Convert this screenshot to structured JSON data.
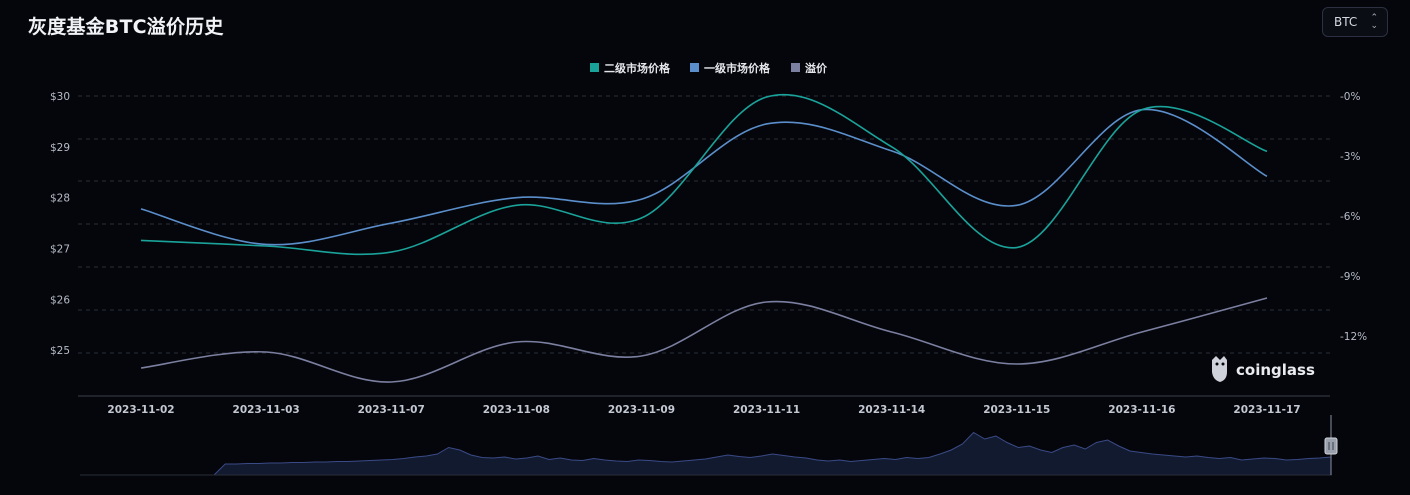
{
  "header": {
    "title": "灰度基金BTC溢价历史",
    "selector_value": "BTC"
  },
  "watermark": {
    "text": "coinglass"
  },
  "chart_data": {
    "type": "line",
    "title": "灰度基金BTC溢价历史",
    "categories": [
      "2023-11-02",
      "2023-11-03",
      "2023-11-07",
      "2023-11-08",
      "2023-11-09",
      "2023-11-11",
      "2023-11-14",
      "2023-11-15",
      "2023-11-16",
      "2023-11-17"
    ],
    "y_left": {
      "ticks": [
        "$25",
        "$26",
        "$27",
        "$28",
        "$29",
        "$30"
      ],
      "range": [
        24.1,
        30.0
      ]
    },
    "y_right": {
      "ticks": [
        "-0%",
        "-3%",
        "-6%",
        "-9%",
        "-12%"
      ],
      "range": [
        -15.0,
        0.0
      ]
    },
    "legend_position": "top-center",
    "grid": true,
    "series": [
      {
        "name": "二级市场价格",
        "axis": "left",
        "color": "#1aa39a",
        "values": [
          27.16,
          27.05,
          26.93,
          27.85,
          27.6,
          29.98,
          29.0,
          27.02,
          29.73,
          28.91
        ]
      },
      {
        "name": "一级市场价格",
        "axis": "left",
        "color": "#5b8fcb",
        "values": [
          27.78,
          27.08,
          27.5,
          28.0,
          27.97,
          29.45,
          28.92,
          27.85,
          29.73,
          28.42
        ]
      },
      {
        "name": "溢价",
        "axis": "right",
        "color": "#7b7fa0",
        "values": [
          -13.6,
          -12.8,
          -14.3,
          -12.3,
          -13.0,
          -10.3,
          -11.8,
          -13.4,
          -11.8,
          -10.1
        ]
      }
    ],
    "navigator": {
      "values": [
        0.0,
        0.0,
        0.0,
        0.0,
        0.0,
        0.0,
        0.0,
        0.0,
        0.0,
        0.0,
        0.0,
        0.0,
        0.0,
        0.22,
        0.22,
        0.23,
        0.23,
        0.24,
        0.24,
        0.25,
        0.25,
        0.26,
        0.26,
        0.27,
        0.27,
        0.28,
        0.29,
        0.3,
        0.31,
        0.33,
        0.36,
        0.38,
        0.42,
        0.55,
        0.5,
        0.4,
        0.35,
        0.34,
        0.36,
        0.32,
        0.34,
        0.38,
        0.31,
        0.34,
        0.3,
        0.29,
        0.33,
        0.3,
        0.28,
        0.27,
        0.3,
        0.29,
        0.27,
        0.26,
        0.28,
        0.3,
        0.32,
        0.36,
        0.4,
        0.37,
        0.35,
        0.38,
        0.42,
        0.39,
        0.36,
        0.34,
        0.3,
        0.28,
        0.3,
        0.27,
        0.29,
        0.31,
        0.33,
        0.31,
        0.35,
        0.33,
        0.35,
        0.42,
        0.5,
        0.62,
        0.85,
        0.72,
        0.78,
        0.65,
        0.55,
        0.58,
        0.5,
        0.45,
        0.55,
        0.6,
        0.52,
        0.65,
        0.7,
        0.58,
        0.48,
        0.45,
        0.42,
        0.4,
        0.38,
        0.36,
        0.38,
        0.35,
        0.33,
        0.35,
        0.3,
        0.32,
        0.34,
        0.33,
        0.3,
        0.31,
        0.33,
        0.34,
        0.36
      ]
    }
  }
}
